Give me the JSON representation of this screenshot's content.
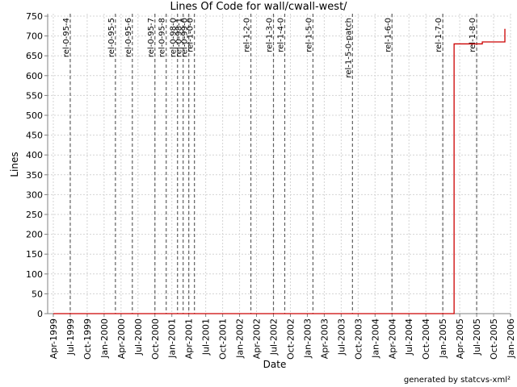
{
  "chart_data": {
    "type": "line",
    "title": "Lines Of Code for wall/cwall-west/",
    "x_label": "Date",
    "y_label": "Lines",
    "footer": "generated by statcvs-xml²",
    "x": [
      "1999-04",
      "2005-03",
      "2005-03",
      "2005-08",
      "2005-08",
      "2005-12",
      "2005-12"
    ],
    "values": [
      0,
      0,
      680,
      680,
      685,
      685,
      718
    ],
    "color": "#cc0000",
    "xlim": [
      "1999-03",
      "2006-01"
    ],
    "xticks": [
      {
        "value": "1999-04",
        "label": "Apr-1999"
      },
      {
        "value": "1999-07",
        "label": "Jul-1999"
      },
      {
        "value": "1999-10",
        "label": "Oct-1999"
      },
      {
        "value": "2000-01",
        "label": "Jan-2000"
      },
      {
        "value": "2000-04",
        "label": "Apr-2000"
      },
      {
        "value": "2000-07",
        "label": "Jul-2000"
      },
      {
        "value": "2000-10",
        "label": "Oct-2000"
      },
      {
        "value": "2001-01",
        "label": "Jan-2001"
      },
      {
        "value": "2001-04",
        "label": "Apr-2001"
      },
      {
        "value": "2001-07",
        "label": "Jul-2001"
      },
      {
        "value": "2001-10",
        "label": "Oct-2001"
      },
      {
        "value": "2002-01",
        "label": "Jan-2002"
      },
      {
        "value": "2002-04",
        "label": "Apr-2002"
      },
      {
        "value": "2002-07",
        "label": "Jul-2002"
      },
      {
        "value": "2002-10",
        "label": "Oct-2002"
      },
      {
        "value": "2003-01",
        "label": "Jan-2003"
      },
      {
        "value": "2003-04",
        "label": "Apr-2003"
      },
      {
        "value": "2003-07",
        "label": "Jul-2003"
      },
      {
        "value": "2003-10",
        "label": "Oct-2003"
      },
      {
        "value": "2004-01",
        "label": "Jan-2004"
      },
      {
        "value": "2004-04",
        "label": "Apr-2004"
      },
      {
        "value": "2004-07",
        "label": "Jul-2004"
      },
      {
        "value": "2004-10",
        "label": "Oct-2004"
      },
      {
        "value": "2005-01",
        "label": "Jan-2005"
      },
      {
        "value": "2005-04",
        "label": "Apr-2005"
      },
      {
        "value": "2005-07",
        "label": "Jul-2005"
      },
      {
        "value": "2005-10",
        "label": "Oct-2005"
      },
      {
        "value": "2006-01",
        "label": "Jan-2006"
      }
    ],
    "ylim": [
      0,
      750
    ],
    "yticks": [
      0,
      50,
      100,
      150,
      200,
      250,
      300,
      350,
      400,
      450,
      500,
      550,
      600,
      650,
      700,
      750
    ],
    "grid": true,
    "markers": [
      {
        "label": "rel-0-95-4",
        "x": "1999-07"
      },
      {
        "label": "rel-0-95-5",
        "x": "2000-03"
      },
      {
        "label": "rel-0-95-6",
        "x": "2000-06"
      },
      {
        "label": "rel-0-95-7",
        "x": "2000-10"
      },
      {
        "label": "rel-0-95-8",
        "x": "2000-12"
      },
      {
        "label": "rel-0-98-0",
        "x": "2001-02"
      },
      {
        "label": "rel-0-98-1",
        "x": "2001-03"
      },
      {
        "label": "rel-0-99-0",
        "x": "2001-04"
      },
      {
        "label": "rel-1-0-0",
        "x": "2001-05"
      },
      {
        "label": "rel-1-2-0",
        "x": "2002-03"
      },
      {
        "label": "rel-1-3-0",
        "x": "2002-07"
      },
      {
        "label": "rel-1-4-0",
        "x": "2002-09"
      },
      {
        "label": "rel-1-5-0",
        "x": "2003-02"
      },
      {
        "label": "rel-1-5-0-patch",
        "x": "2003-09"
      },
      {
        "label": "rel-1-6-0",
        "x": "2004-04"
      },
      {
        "label": "rel-1-7-0",
        "x": "2005-01"
      },
      {
        "label": "rel-1-8-0",
        "x": "2005-07"
      }
    ]
  }
}
